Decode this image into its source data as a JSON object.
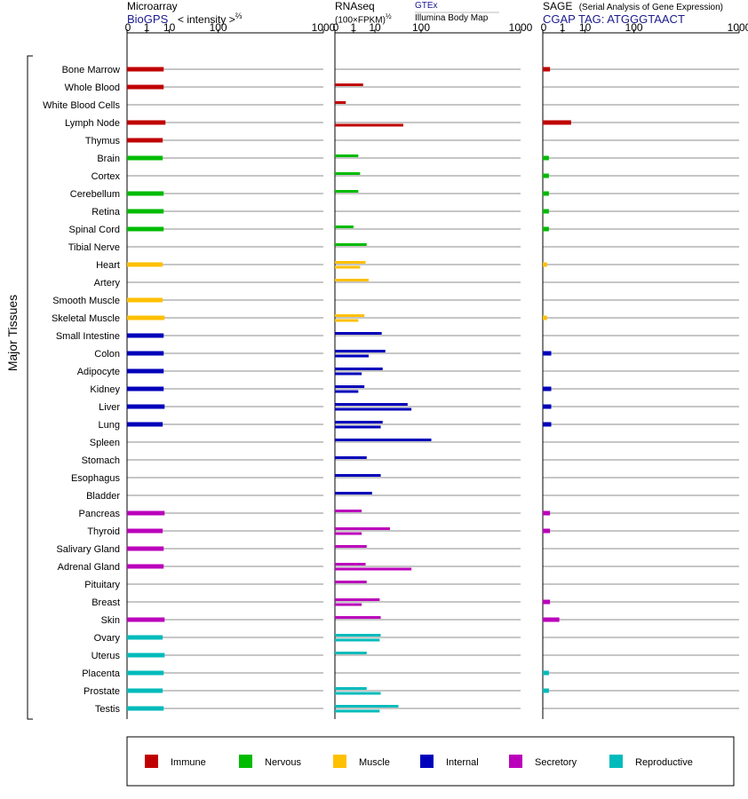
{
  "headers": {
    "microarray": {
      "title": "Microarray",
      "source": "BioGPS",
      "scale": "< intensity >",
      "scale_exp": "⅔"
    },
    "rnaseq": {
      "title": "RNAseq",
      "scale": "(100×FPKM)",
      "scale_exp": "½",
      "source_a": "GTEx",
      "source_b": "Illumina Body Map"
    },
    "sage": {
      "title": "SAGE",
      "subtitle": "(Serial Analysis of Gene Expression)",
      "tag": "CGAP TAG: ATGGGTAACT"
    }
  },
  "y_group_label": "Major Tissues",
  "legend": [
    {
      "name": "Immune",
      "color": "#c00000"
    },
    {
      "name": "Nervous",
      "color": "#00bb00"
    },
    {
      "name": "Muscle",
      "color": "#ffc000"
    },
    {
      "name": "Internal",
      "color": "#0000bb"
    },
    {
      "name": "Secretory",
      "color": "#bb00bb"
    },
    {
      "name": "Reproductive",
      "color": "#00bbbb"
    }
  ],
  "chart_data": {
    "type": "bar",
    "orientation": "horizontal",
    "categories": [
      "Bone Marrow",
      "Whole Blood",
      "White Blood Cells",
      "Lymph Node",
      "Thymus",
      "Brain",
      "Cortex",
      "Cerebellum",
      "Retina",
      "Spinal Cord",
      "Tibial Nerve",
      "Heart",
      "Artery",
      "Smooth Muscle",
      "Skeletal Muscle",
      "Small Intestine",
      "Colon",
      "Adipocyte",
      "Kidney",
      "Liver",
      "Lung",
      "Spleen",
      "Stomach",
      "Esophagus",
      "Bladder",
      "Pancreas",
      "Thyroid",
      "Salivary Gland",
      "Adrenal Gland",
      "Pituitary",
      "Breast",
      "Skin",
      "Ovary",
      "Uterus",
      "Placenta",
      "Prostate",
      "Testis"
    ],
    "category_group": [
      "Immune",
      "Immune",
      "Immune",
      "Immune",
      "Immune",
      "Nervous",
      "Nervous",
      "Nervous",
      "Nervous",
      "Nervous",
      "Nervous",
      "Muscle",
      "Muscle",
      "Muscle",
      "Muscle",
      "Internal",
      "Internal",
      "Internal",
      "Internal",
      "Internal",
      "Internal",
      "Internal",
      "Internal",
      "Internal",
      "Internal",
      "Secretory",
      "Secretory",
      "Secretory",
      "Secretory",
      "Secretory",
      "Secretory",
      "Secretory",
      "Reproductive",
      "Reproductive",
      "Reproductive",
      "Reproductive",
      "Reproductive"
    ],
    "panels": [
      {
        "name": "Microarray",
        "ticks": [
          0,
          1,
          10,
          100,
          1000
        ],
        "xlim": [
          0,
          1000
        ],
        "series": [
          {
            "name": "BioGPS",
            "values": [
              6.5,
              6.5,
              null,
              7.5,
              6,
              6,
              null,
              6.5,
              6.5,
              6.5,
              null,
              6,
              null,
              6,
              7,
              6.5,
              6.5,
              6.5,
              6.5,
              7,
              6,
              null,
              null,
              null,
              null,
              7,
              6,
              6.5,
              6.5,
              null,
              null,
              7,
              6,
              7,
              6.5,
              6,
              6.5
            ]
          }
        ]
      },
      {
        "name": "RNAseq",
        "ticks": [
          0,
          1,
          10,
          100,
          1000
        ],
        "xlim": [
          0,
          1000
        ],
        "series": [
          {
            "name": "GTEx",
            "values": [
              null,
              3.5,
              0.2,
              null,
              null,
              2,
              2.5,
              2,
              null,
              1,
              5,
              4.5,
              6,
              null,
              4,
              16,
              20,
              17,
              4,
              60,
              17,
              140,
              5,
              15,
              8,
              3,
              26,
              5,
              4.5,
              5,
              14,
              15,
              15,
              5,
              null,
              5,
              40
            ]
          },
          {
            "name": "Illumina Body Map",
            "values": [
              null,
              null,
              null,
              50,
              null,
              null,
              null,
              null,
              null,
              null,
              null,
              2.5,
              null,
              null,
              2,
              null,
              6,
              3,
              2,
              70,
              15,
              null,
              null,
              null,
              null,
              null,
              3,
              null,
              70,
              null,
              3,
              null,
              14,
              null,
              null,
              15,
              14
            ]
          }
        ]
      },
      {
        "name": "SAGE",
        "ticks": [
          0,
          1,
          10,
          100,
          1000
        ],
        "xlim": [
          0,
          1000
        ],
        "series": [
          {
            "name": "CGAP TAG: ATGGGTAACT",
            "values": [
              0.05,
              null,
              null,
              3,
              null,
              0.03,
              0.03,
              0.03,
              0.03,
              0.03,
              null,
              0.01,
              null,
              null,
              0.01,
              null,
              0.08,
              null,
              0.08,
              0.08,
              0.08,
              null,
              null,
              null,
              null,
              0.05,
              0.05,
              null,
              null,
              null,
              0.05,
              0.6,
              null,
              null,
              0.03,
              0.03,
              null
            ]
          }
        ]
      }
    ]
  }
}
